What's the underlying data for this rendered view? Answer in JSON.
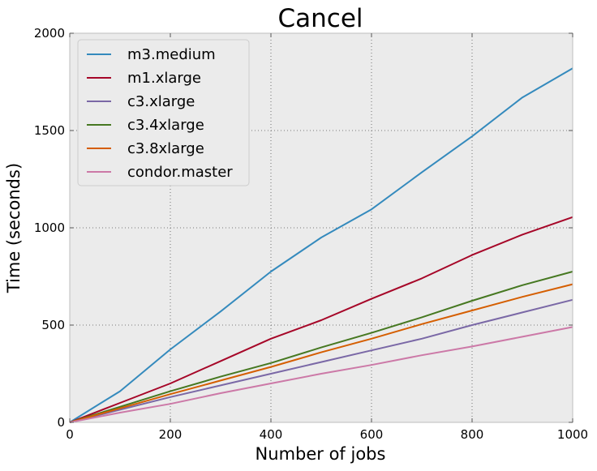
{
  "chart_data": {
    "type": "line",
    "title": "Cancel",
    "xlabel": "Number of jobs",
    "ylabel": "Time (seconds)",
    "xlim": [
      0,
      1000
    ],
    "ylim": [
      0,
      2000
    ],
    "xticks": [
      0,
      200,
      400,
      600,
      800,
      1000
    ],
    "yticks": [
      0,
      500,
      1000,
      1500,
      2000
    ],
    "grid": true,
    "background": "#ebebeb",
    "legend_position": "top-left",
    "series": [
      {
        "name": "m3.medium",
        "color": "#348abd",
        "x": [
          0,
          100,
          200,
          300,
          400,
          500,
          600,
          700,
          800,
          900,
          1000
        ],
        "y": [
          0,
          160,
          375,
          570,
          775,
          950,
          1095,
          1285,
          1470,
          1670,
          1820
        ]
      },
      {
        "name": "m1.xlarge",
        "color": "#a60628",
        "x": [
          0,
          100,
          200,
          300,
          400,
          500,
          600,
          700,
          800,
          900,
          1000
        ],
        "y": [
          0,
          100,
          200,
          315,
          430,
          525,
          635,
          740,
          860,
          965,
          1055
        ]
      },
      {
        "name": "c3.xlarge",
        "color": "#7a68a6",
        "x": [
          0,
          100,
          200,
          300,
          400,
          500,
          600,
          700,
          800,
          900,
          1000
        ],
        "y": [
          0,
          65,
          130,
          190,
          250,
          310,
          370,
          430,
          500,
          565,
          630
        ]
      },
      {
        "name": "c3.4xlarge",
        "color": "#467821",
        "x": [
          0,
          100,
          200,
          300,
          400,
          500,
          600,
          700,
          800,
          900,
          1000
        ],
        "y": [
          0,
          80,
          160,
          235,
          305,
          385,
          460,
          540,
          625,
          705,
          775
        ]
      },
      {
        "name": "c3.8xlarge",
        "color": "#d55e00",
        "x": [
          0,
          100,
          200,
          300,
          400,
          500,
          600,
          700,
          800,
          900,
          1000
        ],
        "y": [
          0,
          72,
          145,
          215,
          285,
          360,
          430,
          505,
          575,
          645,
          710
        ]
      },
      {
        "name": "condor.master",
        "color": "#cc79a7",
        "x": [
          0,
          100,
          200,
          300,
          400,
          500,
          600,
          700,
          800,
          900,
          1000
        ],
        "y": [
          0,
          50,
          95,
          150,
          200,
          250,
          295,
          345,
          390,
          440,
          490
        ]
      }
    ]
  }
}
